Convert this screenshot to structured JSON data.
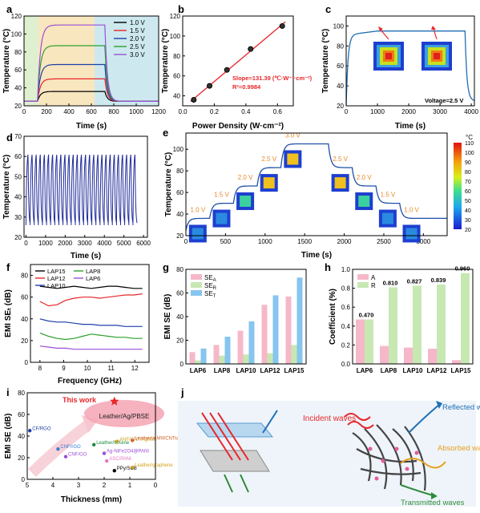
{
  "panels": {
    "a": {
      "letter": "a",
      "xlabel": "Time (s)",
      "ylabel": "Temperature (°C)"
    },
    "b": {
      "letter": "b",
      "xlabel": "Power Density (W·cm⁻²)",
      "ylabel": "Temperature (°C)",
      "slope_text": "Slope=131.39 (℃·W⁻¹·cm⁻²)",
      "r2_text": "R²=0.9984"
    },
    "c": {
      "letter": "c",
      "xlabel": "Time (s)",
      "ylabel": "Temperature (°C)",
      "voltage_text": "Voltage=2.5 V"
    },
    "d": {
      "letter": "d",
      "xlabel": "Time (s)",
      "ylabel": "Temperature (°C)"
    },
    "e": {
      "letter": "e",
      "xlabel": "Time (s)",
      "ylabel": "Temperature (°C)",
      "colorbar_unit": "°C",
      "colorbar_ticks": [
        "110",
        "100",
        "90",
        "80",
        "70",
        "60",
        "50",
        "40",
        "30",
        "20"
      ]
    },
    "f": {
      "letter": "f",
      "xlabel": "Frequency (GHz)",
      "ylabel": "EMI SEₜ (dB)"
    },
    "g": {
      "letter": "g",
      "xlabel": "",
      "ylabel": "EMI SE (dB)"
    },
    "h": {
      "letter": "h",
      "xlabel": "",
      "ylabel": "Coefficient (%)"
    },
    "i": {
      "letter": "i",
      "xlabel": "Thickness (mm)",
      "ylabel": "EMI SE (dB)",
      "this_work": "This work",
      "this_work_label": "Leather/Ag/PBSE"
    },
    "j": {
      "letter": "j",
      "incident": "Incident waves",
      "reflected": "Reflected waves",
      "absorbed": "Absorbed waves",
      "transmitted": "Transmitted waves"
    }
  },
  "chart_data": [
    {
      "id": "a",
      "type": "line",
      "xlim": [
        0,
        1200
      ],
      "ylim": [
        20,
        120
      ],
      "xticks": [
        "0",
        "200",
        "400",
        "600",
        "800",
        "1000",
        "1200"
      ],
      "yticks": [
        "20",
        "40",
        "60",
        "80",
        "100",
        "120"
      ],
      "legend_position": "top-right",
      "series": [
        {
          "name": "1.0 V",
          "color": "#000000",
          "plateau": 36
        },
        {
          "name": "1.5 V",
          "color": "#e8262a",
          "plateau": 50
        },
        {
          "name": "2.0 V",
          "color": "#1f3fa8",
          "plateau": 66
        },
        {
          "name": "2.5 V",
          "color": "#2ca02c",
          "plateau": 87
        },
        {
          "name": "3.0 V",
          "color": "#9b4fd6",
          "plateau": 110
        }
      ],
      "on_time": [
        120,
        720
      ],
      "baseline": 25
    },
    {
      "id": "b",
      "type": "scatter",
      "xlim": [
        0.0,
        0.7
      ],
      "ylim": [
        30,
        120
      ],
      "xticks": [
        "0.0",
        "0.2",
        "0.4",
        "0.6"
      ],
      "yticks": [
        "40",
        "60",
        "80",
        "100",
        "120"
      ],
      "x": [
        0.07,
        0.17,
        0.28,
        0.43,
        0.63
      ],
      "y": [
        36,
        50,
        66,
        87,
        110
      ],
      "fit_color": "#e8262a"
    },
    {
      "id": "c",
      "type": "line",
      "xlim": [
        0,
        4100
      ],
      "ylim": [
        20,
        110
      ],
      "xticks": [
        "0",
        "1000",
        "2000",
        "3000",
        "4000"
      ],
      "yticks": [
        "20",
        "40",
        "60",
        "80",
        "100"
      ],
      "plateau": 95,
      "on_time": [
        0,
        3800
      ],
      "baseline": 25,
      "color": "#1f6fb5"
    },
    {
      "id": "d",
      "type": "line",
      "xlim": [
        -100,
        6200
      ],
      "ylim": [
        20,
        70
      ],
      "xticks": [
        "0",
        "1000",
        "2000",
        "3000",
        "4000",
        "5000",
        "6000"
      ],
      "yticks": [
        "20",
        "30",
        "40",
        "50",
        "60",
        "70"
      ],
      "cycles": 27,
      "period": 210,
      "max": 63,
      "min": 26,
      "color": "#1f2a9a"
    },
    {
      "id": "e",
      "type": "line",
      "xlim": [
        0,
        3300
      ],
      "ylim": [
        20,
        115
      ],
      "xticks": [
        "0",
        "500",
        "1000",
        "1500",
        "2000",
        "2500",
        "3000"
      ],
      "yticks": [
        "20",
        "40",
        "60",
        "80",
        "100"
      ],
      "steps": [
        {
          "label": "1.0 V",
          "t0": 0,
          "t1": 300,
          "T": 36
        },
        {
          "label": "1.5 V",
          "t0": 300,
          "t1": 600,
          "T": 50
        },
        {
          "label": "2.0 V",
          "t0": 600,
          "t1": 900,
          "T": 66
        },
        {
          "label": "2.5 V",
          "t0": 900,
          "t1": 1200,
          "T": 83
        },
        {
          "label": "3.0 V",
          "t0": 1200,
          "t1": 1800,
          "T": 105
        },
        {
          "label": "2.5 V",
          "t0": 1800,
          "t1": 2100,
          "T": 83
        },
        {
          "label": "2.0 V",
          "t0": 2100,
          "t1": 2400,
          "T": 66
        },
        {
          "label": "1.5 V",
          "t0": 2400,
          "t1": 2700,
          "T": 50
        },
        {
          "label": "1.0 V",
          "t0": 2700,
          "t1": 3300,
          "T": 36
        }
      ],
      "color": "#1f4fa8"
    },
    {
      "id": "f",
      "type": "line",
      "xlim": [
        7.6,
        12.6
      ],
      "ylim": [
        0,
        90
      ],
      "xticks": [
        "8",
        "9",
        "10",
        "11",
        "12"
      ],
      "yticks": [
        "0",
        "20",
        "40",
        "60",
        "80"
      ],
      "legend_position": "top-left",
      "series": [
        {
          "name": "LAP15",
          "color": "#000000",
          "values": [
            70,
            69,
            68,
            69,
            70,
            69,
            68,
            69,
            70,
            70,
            69,
            68,
            68
          ]
        },
        {
          "name": "LAP12",
          "color": "#e8262a",
          "values": [
            56,
            52,
            53,
            57,
            59,
            60,
            60,
            59,
            60,
            61,
            62,
            62,
            63
          ]
        },
        {
          "name": "LAP10",
          "color": "#1f3fa8",
          "values": [
            40,
            38,
            37,
            37,
            36,
            35,
            35,
            34,
            34,
            34,
            33,
            33,
            33
          ]
        },
        {
          "name": "LAP8",
          "color": "#2ca02c",
          "values": [
            27,
            24,
            22,
            21,
            22,
            24,
            26,
            25,
            24,
            23,
            23,
            22,
            22
          ]
        },
        {
          "name": "LAP6",
          "color": "#9b4fd6",
          "values": [
            15,
            14,
            13,
            13,
            12,
            12,
            12,
            12,
            12,
            12,
            12,
            12,
            12
          ]
        }
      ],
      "x": [
        8,
        8.36,
        8.72,
        9.08,
        9.44,
        9.8,
        10.16,
        10.52,
        10.88,
        11.24,
        11.6,
        11.96,
        12.32
      ]
    },
    {
      "id": "g",
      "type": "bar",
      "ylim": [
        0,
        80
      ],
      "yticks": [
        "0",
        "20",
        "40",
        "60",
        "80"
      ],
      "categories": [
        "LAP6",
        "LAP8",
        "LAP10",
        "LAP12",
        "LAP15"
      ],
      "series": [
        {
          "name": "SE_A",
          "label": "SE",
          "sub": "A",
          "color": "#f6b8c9",
          "values": [
            10,
            16,
            28,
            50,
            57
          ]
        },
        {
          "name": "SE_R",
          "label": "SE",
          "sub": "R",
          "color": "#c7e8b2",
          "values": [
            3,
            7,
            8,
            9,
            16
          ]
        },
        {
          "name": "SE_T",
          "label": "SE",
          "sub": "T",
          "color": "#86c5ee",
          "values": [
            13,
            23,
            36,
            58,
            73
          ]
        }
      ]
    },
    {
      "id": "h",
      "type": "bar",
      "ylim": [
        0,
        1.0
      ],
      "yticks": [
        "0.0",
        "0.2",
        "0.4",
        "0.6",
        "0.8",
        "1.0"
      ],
      "categories": [
        "LAP6",
        "LAP8",
        "LAP10",
        "LAP12",
        "LAP15"
      ],
      "series": [
        {
          "name": "A",
          "color": "#f6b8c9",
          "values": [
            0.47,
            0.19,
            0.173,
            0.161,
            0.04
          ]
        },
        {
          "name": "R",
          "color": "#c7e8b2",
          "values": [
            0.47,
            0.81,
            0.827,
            0.839,
            0.96
          ]
        }
      ],
      "labels": [
        "0.470",
        "0.810",
        "0.827",
        "0.839",
        "0.960"
      ]
    },
    {
      "id": "i",
      "type": "scatter",
      "xlim": [
        5,
        0
      ],
      "ylim": [
        0,
        80
      ],
      "xticks": [
        "5",
        "4",
        "3",
        "2",
        "1",
        "0"
      ],
      "yticks": [
        "0",
        "20",
        "40",
        "60",
        "80"
      ],
      "points": [
        {
          "label": "CF/RGO",
          "x": 4.9,
          "y": 45,
          "color": "#1f3fa8"
        },
        {
          "label": "Leather/MXene",
          "x": 2.4,
          "y": 32,
          "color": "#1d8a3a"
        },
        {
          "label": "CNF/rGO",
          "x": 3.8,
          "y": 28,
          "color": "#3a7bd5"
        },
        {
          "label": "CNF/GO",
          "x": 3.5,
          "y": 21,
          "color": "#9b4fd6"
        },
        {
          "label": "ANF/CNF/AgNW",
          "x": 1.5,
          "y": 35,
          "color": "#c9a227"
        },
        {
          "label": "Leather/a-MWCNTs/CA",
          "x": 0.9,
          "y": 36,
          "color": "#d4622a"
        },
        {
          "label": "Ag-NiFe2O4@PANI",
          "x": 2.0,
          "y": 24,
          "color": "#9b4fd6"
        },
        {
          "label": "ASC/PANI",
          "x": 1.9,
          "y": 17,
          "color": "#e377c2"
        },
        {
          "label": "PPy/SCB",
          "x": 1.6,
          "y": 8,
          "color": "#000000"
        },
        {
          "label": "Leather/graphene",
          "x": 0.9,
          "y": 11,
          "color": "#d4a017"
        }
      ],
      "this_work_point": {
        "x": 1.6,
        "y": 72
      }
    }
  ]
}
